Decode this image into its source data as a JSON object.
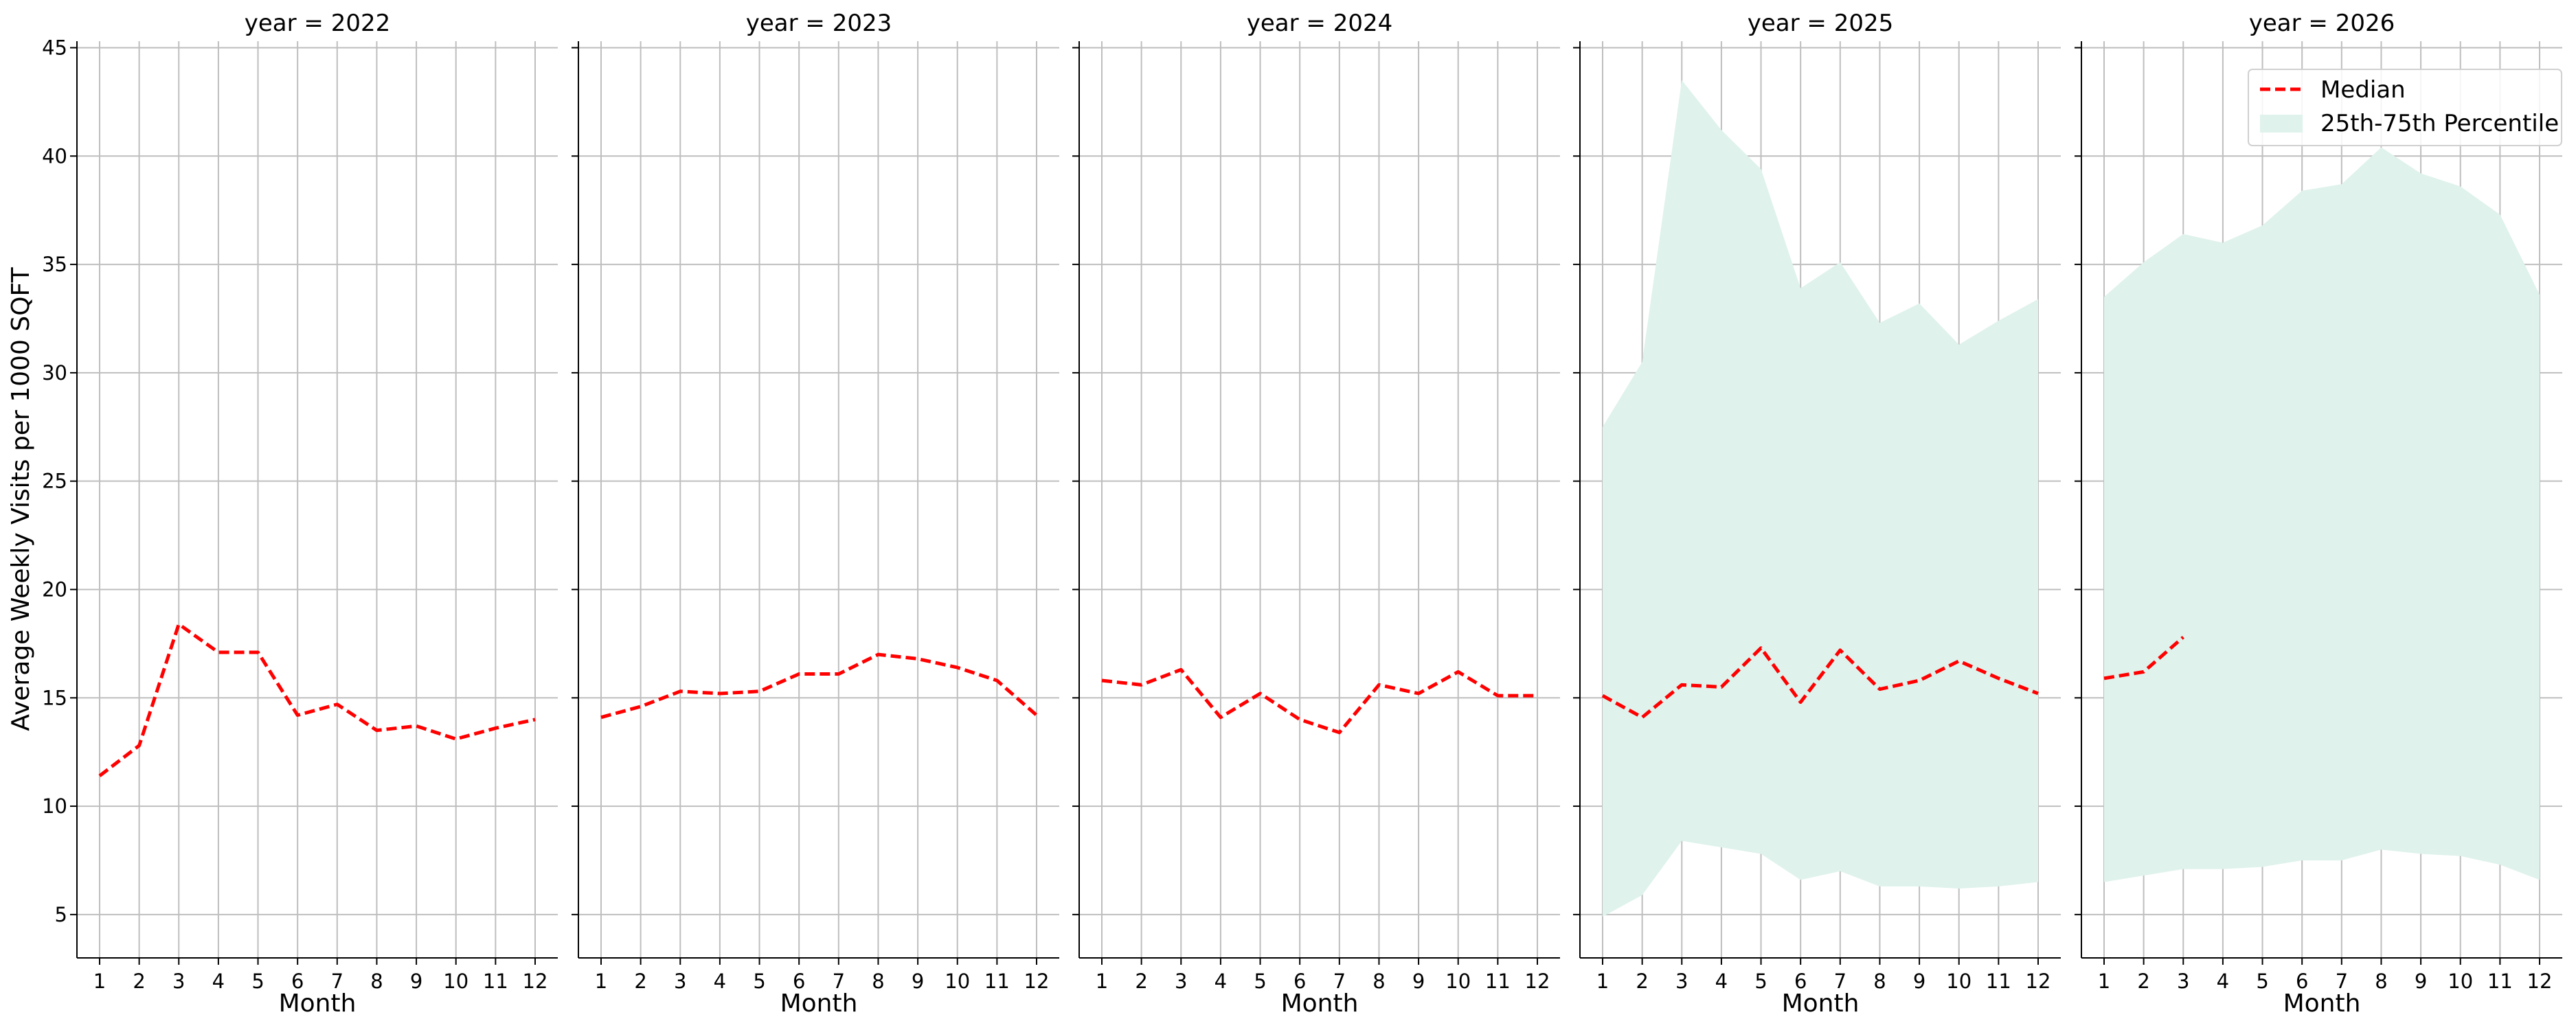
{
  "chart_data": {
    "type": "line",
    "facet_label_prefix": "year = ",
    "xlabel": "Month",
    "ylabel": "Average Weekly Visits per 1000 SQFT",
    "x": [
      1,
      2,
      3,
      4,
      5,
      6,
      7,
      8,
      9,
      10,
      11,
      12
    ],
    "ylim": [
      3,
      45.3
    ],
    "yticks": [
      5,
      10,
      15,
      20,
      25,
      30,
      35,
      40,
      45
    ],
    "grid": true,
    "legend": {
      "placement": "top-right",
      "entries": [
        "Median",
        "25th-75th Percentile"
      ]
    },
    "colors": {
      "median": "#ff0000",
      "band": "#dff2ec",
      "grid": "#bebebe"
    },
    "panels": [
      {
        "year": "2022",
        "median": [
          11.4,
          12.8,
          18.4,
          17.1,
          17.1,
          14.2,
          14.7,
          13.5,
          13.7,
          13.1,
          13.6,
          14.0
        ],
        "p25": [],
        "p75": []
      },
      {
        "year": "2023",
        "median": [
          14.1,
          14.6,
          15.3,
          15.2,
          15.3,
          16.1,
          16.1,
          17.0,
          16.8,
          16.4,
          15.8,
          14.2
        ],
        "p25": [],
        "p75": []
      },
      {
        "year": "2024",
        "median": [
          15.8,
          15.6,
          16.3,
          14.1,
          15.2,
          14.0,
          13.4,
          15.6,
          15.2,
          16.2,
          15.1,
          15.1
        ],
        "p25": [],
        "p75": []
      },
      {
        "year": "2025",
        "median": [
          15.1,
          14.1,
          15.6,
          15.5,
          17.3,
          14.8,
          17.2,
          15.4,
          15.8,
          16.7,
          15.9,
          15.2
        ],
        "p25": [
          4.9,
          5.9,
          8.4,
          8.1,
          7.8,
          6.6,
          7.0,
          6.3,
          6.3,
          6.2,
          6.3,
          6.5
        ],
        "p75": [
          27.5,
          30.5,
          43.5,
          41.2,
          39.4,
          33.9,
          35.1,
          32.3,
          33.2,
          31.3,
          32.4,
          33.4
        ]
      },
      {
        "year": "2026",
        "median": [
          15.9,
          16.2,
          17.8
        ],
        "p25": [
          6.5,
          6.8,
          7.1,
          7.1,
          7.2,
          7.5,
          7.5,
          8.0,
          7.8,
          7.7,
          7.3,
          6.6
        ],
        "p75": [
          33.5,
          35.1,
          36.4,
          36.0,
          36.8,
          38.4,
          38.7,
          40.4,
          39.2,
          38.6,
          37.3,
          33.6
        ]
      }
    ]
  }
}
